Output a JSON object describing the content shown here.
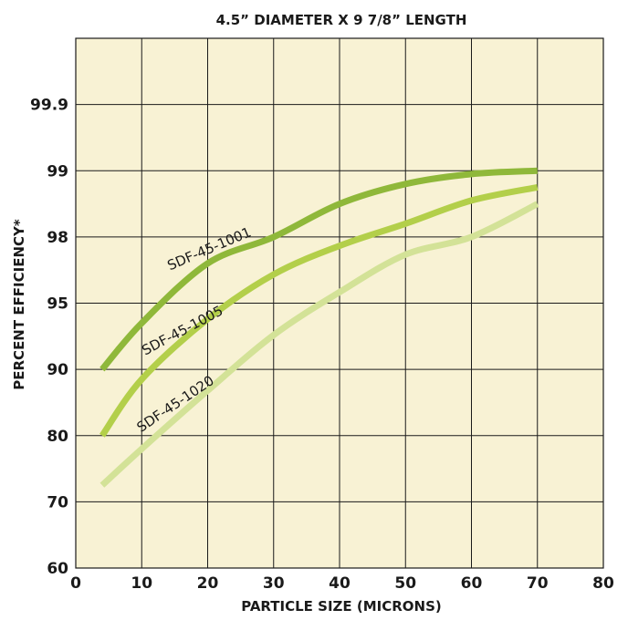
{
  "chart_data": {
    "type": "line",
    "title": "4.5” DIAMETER X 9 7/8” LENGTH",
    "xlabel": "PARTICLE SIZE (MICRONS)",
    "ylabel": "PERCENT EFFICIENCY*",
    "xlim": [
      0,
      80
    ],
    "x_ticks": [
      "0",
      "10",
      "20",
      "30",
      "40",
      "50",
      "60",
      "70",
      "80"
    ],
    "y_ticks": [
      "60",
      "70",
      "80",
      "90",
      "95",
      "98",
      "99",
      "99.9"
    ],
    "grid": true,
    "background_color": "#f8f2d4",
    "series": [
      {
        "name": "SDF-45-1001",
        "color": "#8fb83a",
        "x": [
          4,
          10,
          20,
          30,
          40,
          50,
          60,
          70
        ],
        "y": [
          90,
          93.5,
          96.8,
          98,
          98.5,
          98.8,
          98.95,
          99
        ]
      },
      {
        "name": "SDF-45-1005",
        "color": "#b3cf4a",
        "x": [
          4,
          10,
          20,
          30,
          40,
          50,
          60,
          70
        ],
        "y": [
          80,
          88.5,
          93.8,
          96.3,
          97.6,
          98.2,
          98.55,
          98.75
        ]
      },
      {
        "name": "SDF-45-1020",
        "color": "#d3e297",
        "x": [
          4,
          10,
          20,
          30,
          40,
          50,
          60,
          70
        ],
        "y": [
          72.5,
          78,
          86.8,
          92.6,
          95.5,
          97.2,
          98,
          98.5
        ]
      }
    ]
  }
}
